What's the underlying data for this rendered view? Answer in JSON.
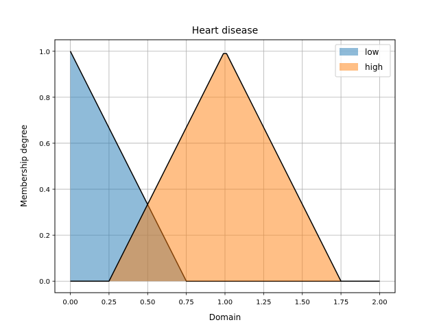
{
  "chart_data": {
    "type": "area",
    "title": "Heart disease",
    "xlabel": "Domain",
    "ylabel": "Membership degree",
    "xlim": [
      -0.1,
      2.1
    ],
    "ylim": [
      -0.05,
      1.05
    ],
    "xticks": [
      0.0,
      0.25,
      0.5,
      0.75,
      1.0,
      1.25,
      1.5,
      1.75,
      2.0
    ],
    "xtick_labels": [
      "0.00",
      "0.25",
      "0.50",
      "0.75",
      "1.00",
      "1.25",
      "1.50",
      "1.75",
      "2.00"
    ],
    "yticks": [
      0.0,
      0.2,
      0.4,
      0.6,
      0.8,
      1.0
    ],
    "ytick_labels": [
      "0.0",
      "0.2",
      "0.4",
      "0.6",
      "0.8",
      "1.0"
    ],
    "grid": true,
    "legend_position": "top-right",
    "series": [
      {
        "name": "low",
        "color": "#1f77b4",
        "x": [
          0.0,
          0.75,
          2.0
        ],
        "y": [
          1.0,
          0.0,
          0.0
        ]
      },
      {
        "name": "high",
        "color": "#ff7f0e",
        "x": [
          0.0,
          0.25,
          0.99,
          1.01,
          1.75,
          2.0
        ],
        "y": [
          0.0,
          0.0,
          0.99,
          0.99,
          0.0,
          0.0
        ]
      }
    ]
  }
}
